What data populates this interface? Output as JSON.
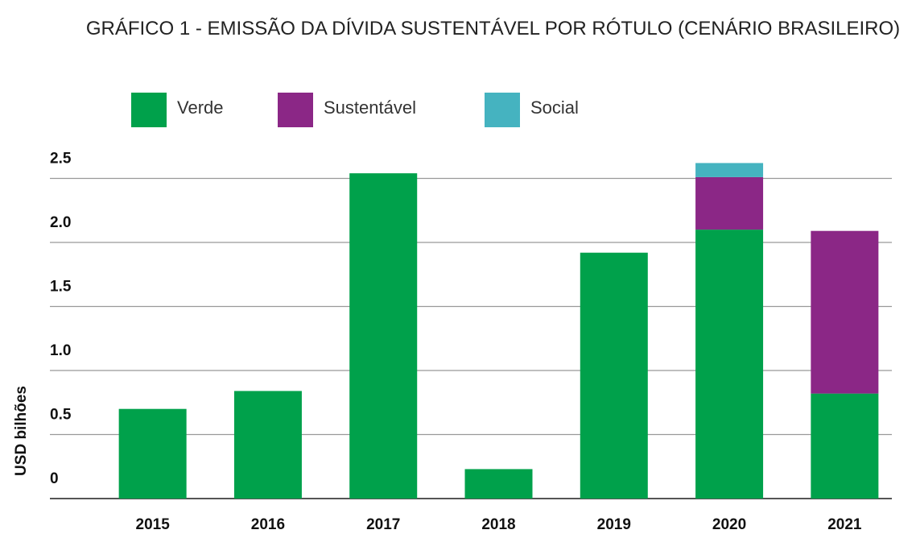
{
  "chart_data": {
    "type": "stacked_bar",
    "title": "GRÁFICO 1 - EMISSÃO DA DÍVIDA SUSTENTÁVEL POR RÓTULO (CENÁRIO BRASILEIRO)",
    "y_label": "USD bilhões",
    "categories": [
      "2015",
      "2016",
      "2017",
      "2018",
      "2019",
      "2020",
      "2021"
    ],
    "series": [
      {
        "name": "Verde",
        "color": "#00a14b",
        "values": [
          0.7,
          0.84,
          2.54,
          0.23,
          1.92,
          2.1,
          0.82
        ]
      },
      {
        "name": "Sustentável",
        "color": "#8b2786",
        "values": [
          0,
          0,
          0,
          0,
          0,
          0.41,
          1.27
        ]
      },
      {
        "name": "Social",
        "color": "#45b3c0",
        "values": [
          0,
          0,
          0,
          0,
          0,
          0.11,
          0
        ]
      }
    ],
    "ylim": [
      0,
      2.7
    ],
    "yticks": [
      0,
      0.5,
      {
        "value": 1,
        "label": "1.0"
      },
      1.5,
      {
        "value": 2,
        "label": "2.0"
      },
      2.5
    ],
    "grid": true
  }
}
